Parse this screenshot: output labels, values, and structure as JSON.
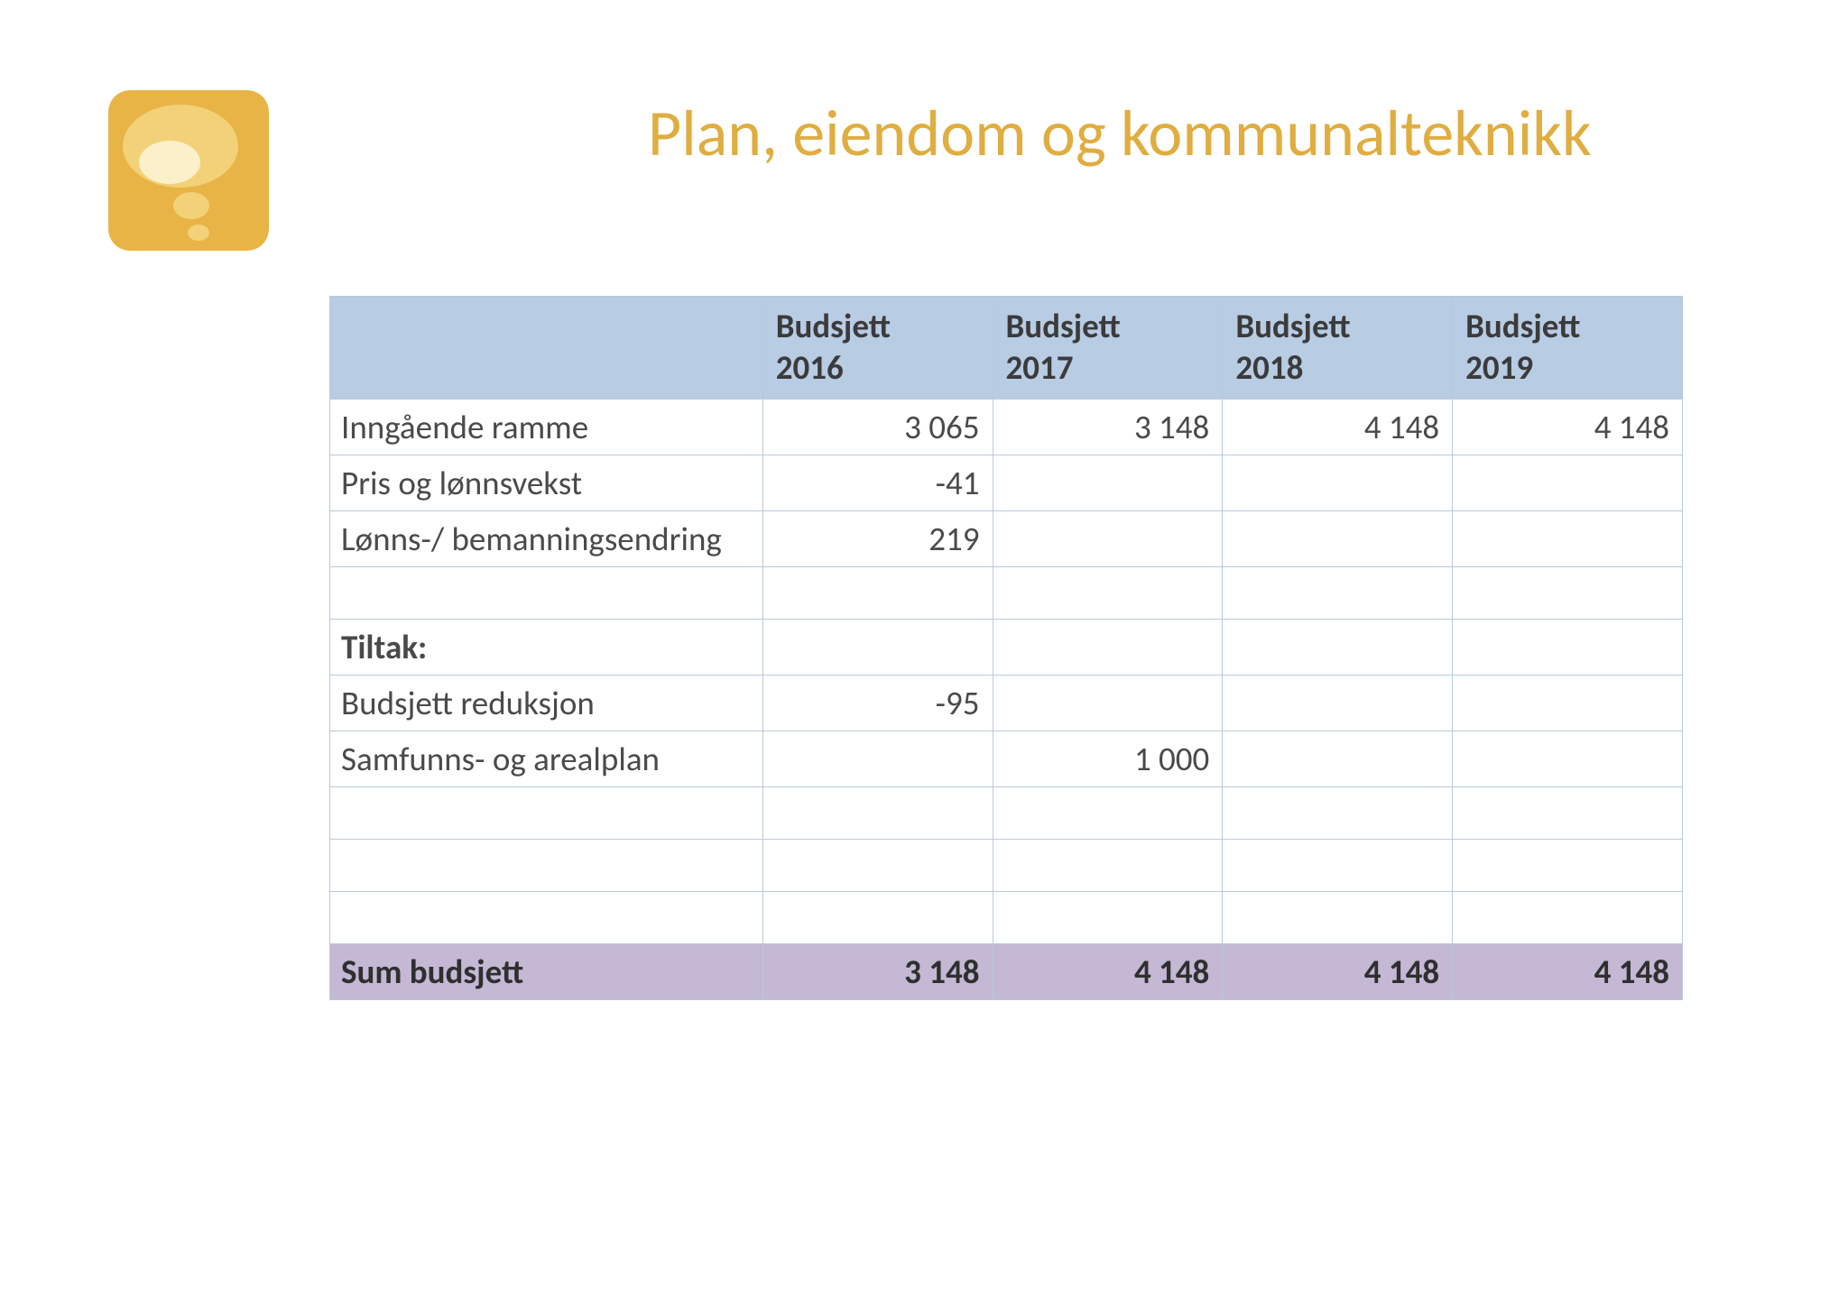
{
  "colors": {
    "icon_bg": "#e8b445",
    "icon_ellipse_big": "#f2d178",
    "icon_ellipse_small": "#fbf0c9",
    "title": "#e0ad40",
    "header_bg": "#b8cce4",
    "header_text": "#3b3b3b",
    "border": "#b8c9de",
    "sum_bg": "#c4b8d4",
    "body_text": "#4a4a4a"
  },
  "title": "Plan, eiendom og kommunalteknikk",
  "table": {
    "columns": [
      "",
      "Budsjett\n2016",
      "Budsjett\n2017",
      "Budsjett\n2018",
      "Budsjett\n2019"
    ],
    "rows": [
      {
        "label": "Inngående ramme",
        "v": [
          "3 065",
          "3 148",
          "4 148",
          "4 148"
        ],
        "bold": false
      },
      {
        "label": "Pris og lønnsvekst",
        "v": [
          "-41",
          "",
          "",
          ""
        ],
        "bold": false
      },
      {
        "label": "Lønns-/ bemanningsendring",
        "v": [
          "219",
          "",
          "",
          ""
        ],
        "bold": false
      },
      {
        "label": "",
        "v": [
          "",
          "",
          "",
          ""
        ],
        "bold": false
      },
      {
        "label": "Tiltak:",
        "v": [
          "",
          "",
          "",
          ""
        ],
        "bold": true
      },
      {
        "label": "Budsjett reduksjon",
        "v": [
          "-95",
          "",
          "",
          ""
        ],
        "bold": false
      },
      {
        "label": "Samfunns- og arealplan",
        "v": [
          "",
          "1 000",
          "",
          ""
        ],
        "bold": false
      },
      {
        "label": "",
        "v": [
          "",
          "",
          "",
          ""
        ],
        "bold": false
      },
      {
        "label": "",
        "v": [
          "",
          "",
          "",
          ""
        ],
        "bold": false
      },
      {
        "label": "",
        "v": [
          "",
          "",
          "",
          ""
        ],
        "bold": false
      }
    ],
    "sum": {
      "label": "Sum budsjett",
      "v": [
        "3 148",
        "4 148",
        "4 148",
        "4 148"
      ]
    }
  }
}
